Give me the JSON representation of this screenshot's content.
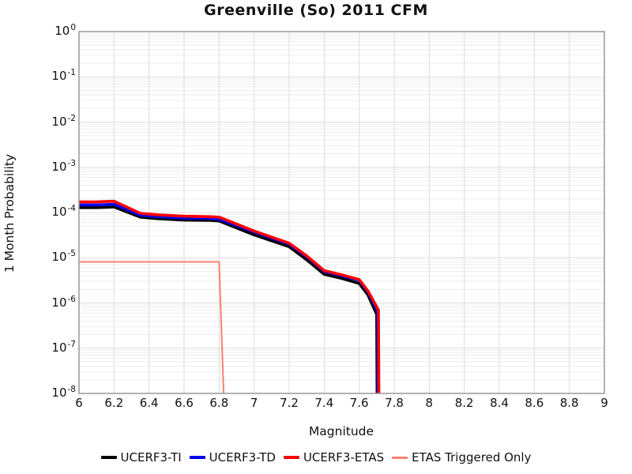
{
  "title": "Greenville (So) 2011 CFM",
  "colors": {
    "background": "#ffffff",
    "plot_border": "#999999",
    "grid_major": "#dcdcdc",
    "grid_minor": "#ededed",
    "text": "#111111",
    "series_ti": "#000000",
    "series_td": "#0000ee",
    "series_etas": "#ff0000",
    "series_triggered": "#fb8072"
  },
  "chart_data": {
    "type": "line",
    "title": "Greenville (So) 2011 CFM",
    "xlabel": "Magnitude",
    "ylabel": "1 Month Probability",
    "xlim": [
      6,
      9
    ],
    "ylim": [
      1e-08,
      1
    ],
    "y_scale": "log",
    "grid": true,
    "legend_position": "bottom",
    "x_ticks": [
      {
        "value": 6.0,
        "label": "6"
      },
      {
        "value": 6.2,
        "label": "6.2"
      },
      {
        "value": 6.4,
        "label": "6.4"
      },
      {
        "value": 6.6,
        "label": "6.6"
      },
      {
        "value": 6.8,
        "label": "6.8"
      },
      {
        "value": 7.0,
        "label": "7"
      },
      {
        "value": 7.2,
        "label": "7.2"
      },
      {
        "value": 7.4,
        "label": "7.4"
      },
      {
        "value": 7.6,
        "label": "7.6"
      },
      {
        "value": 7.8,
        "label": "7.8"
      },
      {
        "value": 8.0,
        "label": "8"
      },
      {
        "value": 8.2,
        "label": "8.2"
      },
      {
        "value": 8.4,
        "label": "8.4"
      },
      {
        "value": 8.6,
        "label": "8.6"
      },
      {
        "value": 8.8,
        "label": "8.8"
      },
      {
        "value": 9.0,
        "label": "9"
      }
    ],
    "y_tick_exponents": [
      0,
      -1,
      -2,
      -3,
      -4,
      -5,
      -6,
      -7,
      -8
    ],
    "y_tick_base": "10",
    "series": [
      {
        "name": "UCERF3-TI",
        "color": "#000000",
        "width": 3.6,
        "points": [
          [
            6.0,
            0.000128
          ],
          [
            6.1,
            0.000128
          ],
          [
            6.2,
            0.000133
          ],
          [
            6.35,
            7.9e-05
          ],
          [
            6.45,
            7.3e-05
          ],
          [
            6.6,
            6.8e-05
          ],
          [
            6.75,
            6.7e-05
          ],
          [
            6.8,
            6.5e-05
          ],
          [
            7.0,
            3.2e-05
          ],
          [
            7.2,
            1.75e-05
          ],
          [
            7.3,
            9e-06
          ],
          [
            7.4,
            4.3e-06
          ],
          [
            7.5,
            3.5e-06
          ],
          [
            7.6,
            2.7e-06
          ],
          [
            7.65,
            1.5e-06
          ],
          [
            7.7,
            5.6e-07
          ],
          [
            7.703,
            2.5e-09
          ]
        ]
      },
      {
        "name": "UCERF3-TD",
        "color": "#0000ee",
        "width": 3.6,
        "points": [
          [
            6.0,
            0.000147
          ],
          [
            6.1,
            0.000147
          ],
          [
            6.2,
            0.000152
          ],
          [
            6.35,
            8.7e-05
          ],
          [
            6.45,
            8.1e-05
          ],
          [
            6.6,
            7.5e-05
          ],
          [
            6.75,
            7.4e-05
          ],
          [
            6.8,
            7.1e-05
          ],
          [
            7.0,
            3.7e-05
          ],
          [
            7.2,
            2e-05
          ],
          [
            7.3,
            1.05e-05
          ],
          [
            7.4,
            5e-06
          ],
          [
            7.5,
            4e-06
          ],
          [
            7.6,
            3.2e-06
          ],
          [
            7.65,
            1.75e-06
          ],
          [
            7.705,
            6.6e-07
          ],
          [
            7.708,
            2.8e-09
          ]
        ]
      },
      {
        "name": "UCERF3-ETAS",
        "color": "#ff0000",
        "width": 3.6,
        "points": [
          [
            6.0,
            0.000172
          ],
          [
            6.1,
            0.000172
          ],
          [
            6.2,
            0.000178
          ],
          [
            6.35,
            9.6e-05
          ],
          [
            6.45,
            8.9e-05
          ],
          [
            6.6,
            8.3e-05
          ],
          [
            6.75,
            8.1e-05
          ],
          [
            6.8,
            7.9e-05
          ],
          [
            7.0,
            3.9e-05
          ],
          [
            7.2,
            2.1e-05
          ],
          [
            7.3,
            1.1e-05
          ],
          [
            7.4,
            5.2e-06
          ],
          [
            7.5,
            4.2e-06
          ],
          [
            7.6,
            3.3e-06
          ],
          [
            7.65,
            1.85e-06
          ],
          [
            7.71,
            7e-07
          ],
          [
            7.713,
            3e-09
          ]
        ]
      },
      {
        "name": "ETAS Triggered Only",
        "color": "#fb8072",
        "width": 2,
        "points": [
          [
            6.0,
            8.1e-06
          ],
          [
            6.8,
            8.1e-06
          ],
          [
            6.835,
            1e-09
          ]
        ]
      }
    ]
  }
}
